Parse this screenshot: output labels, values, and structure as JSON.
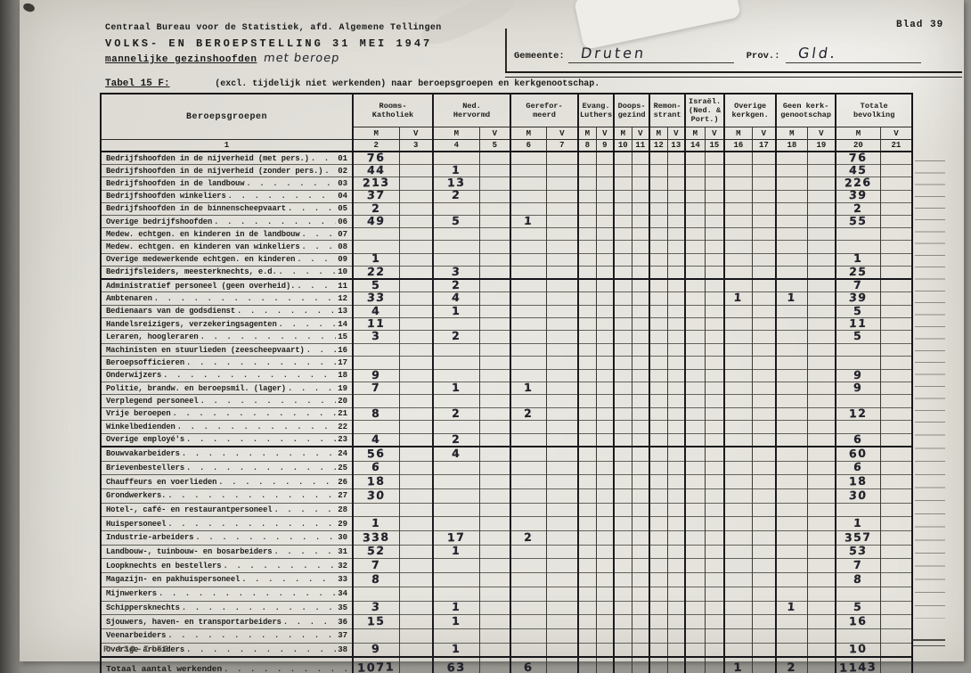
{
  "page": {
    "blad": "Blad 39",
    "footer_code": "R.130-I-50"
  },
  "header": {
    "bureau_line": "Centraal Bureau voor de Statistiek, afd. Algemene Tellingen",
    "title": "VOLKS- EN BEROEPSTELLING 31 MEI 1947",
    "subtitle_typed": "mannelijke gezinshoofden",
    "subtitle_handwritten": "met beroep",
    "gemeente_label": "Gemeente:",
    "gemeente_value": "Druten",
    "prov_label": "Prov.:",
    "prov_value": "Gld."
  },
  "tabel": {
    "label": "Tabel 15 F:",
    "description": "(excl. tijdelijk niet werkenden) naar beroepsgroepen en kerkgenootschap."
  },
  "table": {
    "beroepsgroepen_header": "Beroepsgroepen",
    "beroepsgroepen_colnum": "1",
    "mv": [
      "M",
      "V"
    ],
    "groups": [
      {
        "name": "Rooms-\nKatholiek",
        "cols": [
          "2",
          "3"
        ]
      },
      {
        "name": "Ned.\nHervormd",
        "cols": [
          "4",
          "5"
        ]
      },
      {
        "name": "Gerefor-\nmeerd",
        "cols": [
          "6",
          "7"
        ]
      },
      {
        "name": "Evang.\nLuthers",
        "cols": [
          "8",
          "9"
        ]
      },
      {
        "name": "Doops-\ngezind",
        "cols": [
          "10",
          "11"
        ]
      },
      {
        "name": "Remon-\nstrant",
        "cols": [
          "12",
          "13"
        ]
      },
      {
        "name": "Israël.\n(Ned. &\nPort.)",
        "cols": [
          "14",
          "15"
        ]
      },
      {
        "name": "Overige\nkerkgen.",
        "cols": [
          "16",
          "17"
        ]
      },
      {
        "name": "Geen kerk-\ngenootschap",
        "cols": [
          "18",
          "19"
        ]
      },
      {
        "name": "Totale\nbevolking",
        "cols": [
          "20",
          "21"
        ]
      }
    ],
    "sections": [
      {
        "rows": [
          {
            "num": "01",
            "label": "Bedrijfshoofden in de nijverheid (met pers.)",
            "v": {
              "2": "76",
              "20": "76"
            }
          },
          {
            "num": "02",
            "label": "Bedrijfshoofden in de nijverheid (zonder pers.)",
            "v": {
              "2": "44",
              "4": "1",
              "20": "45"
            }
          },
          {
            "num": "03",
            "label": "Bedrijfshoofden in de landbouw",
            "v": {
              "2": "213",
              "4": "13",
              "20": "226"
            }
          },
          {
            "num": "04",
            "label": "Bedrijfshoofden winkeliers",
            "v": {
              "2": "37",
              "4": "2",
              "20": "39"
            }
          },
          {
            "num": "05",
            "label": "Bedrijfshoofden in de binnenscheepvaart",
            "v": {
              "2": "2",
              "20": "2"
            }
          },
          {
            "num": "06",
            "label": "Overige bedrijfshoofden",
            "v": {
              "2": "49",
              "4": "5",
              "6": "1",
              "20": "55"
            }
          },
          {
            "num": "07",
            "label": "Medew. echtgen. en kinderen in de landbouw",
            "v": {}
          },
          {
            "num": "08",
            "label": "Medew. echtgen. en kinderen van winkeliers",
            "v": {}
          },
          {
            "num": "09",
            "label": "Overige medewerkende echtgen. en kinderen",
            "v": {
              "2": "1",
              "20": "1"
            }
          },
          {
            "num": "10",
            "label": "Bedrijfsleiders, meesterknechts, e.d.",
            "v": {
              "2": "22",
              "4": "3",
              "20": "25"
            }
          }
        ]
      },
      {
        "rows": [
          {
            "num": "11",
            "label": "Administratief personeel (geen overheid).",
            "v": {
              "2": "5",
              "4": "2",
              "20": "7"
            }
          },
          {
            "num": "12",
            "label": "Ambtenaren",
            "v": {
              "2": "33",
              "4": "4",
              "16": "1",
              "18": "1",
              "20": "39"
            }
          },
          {
            "num": "13",
            "label": "Bedienaars van de godsdienst",
            "v": {
              "2": "4",
              "4": "1",
              "20": "5"
            }
          },
          {
            "num": "14",
            "label": "Handelsreizigers, verzekeringsagenten",
            "v": {
              "2": "11",
              "20": "11"
            }
          },
          {
            "num": "15",
            "label": "Leraren, hoogleraren",
            "v": {
              "2": "3",
              "4": "2",
              "20": "5"
            }
          },
          {
            "num": "16",
            "label": "Machinisten en stuurlieden (zeescheepvaart)",
            "v": {}
          },
          {
            "num": "17",
            "label": "Beroepsofficieren",
            "v": {}
          },
          {
            "num": "18",
            "label": "Onderwijzers",
            "v": {
              "2": "9",
              "20": "9"
            }
          },
          {
            "num": "19",
            "label": "Politie, brandw. en beroepsmil. (lager)",
            "v": {
              "2": "7",
              "4": "1",
              "6": "1",
              "20": "9"
            }
          },
          {
            "num": "20",
            "label": "Verplegend personeel",
            "v": {}
          },
          {
            "num": "21",
            "label": "Vrije beroepen",
            "v": {
              "2": "8",
              "4": "2",
              "6": "2",
              "20": "12"
            }
          },
          {
            "num": "22",
            "label": "Winkelbedienden",
            "v": {}
          },
          {
            "num": "23",
            "label": "Overige employé's",
            "v": {
              "2": "4",
              "4": "2",
              "20": "6"
            }
          }
        ]
      },
      {
        "rows": [
          {
            "num": "24",
            "label": "Bouwvakarbeiders",
            "v": {
              "2": "56",
              "4": "4",
              "20": "60"
            }
          },
          {
            "num": "25",
            "label": "Brievenbestellers",
            "v": {
              "2": "6",
              "20": "6"
            }
          },
          {
            "num": "26",
            "label": "Chauffeurs en voerlieden",
            "v": {
              "2": "18",
              "20": "18"
            }
          },
          {
            "num": "27",
            "label": "Grondwerkers.",
            "v": {
              "2": "30",
              "20": "30"
            }
          },
          {
            "num": "28",
            "label": "Hotel-, café- en restaurantpersoneel",
            "v": {}
          },
          {
            "num": "29",
            "label": "Huispersoneel",
            "v": {
              "2": "1",
              "20": "1"
            }
          },
          {
            "num": "30",
            "label": "Industrie-arbeiders",
            "v": {
              "2": "338",
              "4": "17",
              "6": "2",
              "20": "357"
            }
          },
          {
            "num": "31",
            "label": "Landbouw-, tuinbouw- en bosarbeiders",
            "v": {
              "2": "52",
              "4": "1",
              "20": "53"
            }
          },
          {
            "num": "32",
            "label": "Loopknechts en bestellers",
            "v": {
              "2": "7",
              "20": "7"
            }
          },
          {
            "num": "33",
            "label": "Magazijn- en pakhuispersoneel",
            "v": {
              "2": "8",
              "20": "8"
            }
          },
          {
            "num": "34",
            "label": "Mijnwerkers",
            "v": {}
          },
          {
            "num": "35",
            "label": "Schippersknechts",
            "v": {
              "2": "3",
              "4": "1",
              "18": "1",
              "20": "5"
            }
          },
          {
            "num": "36",
            "label": "Sjouwers, haven- en transportarbeiders",
            "v": {
              "2": "15",
              "4": "1",
              "20": "16"
            }
          },
          {
            "num": "37",
            "label": "Veenarbeiders",
            "v": {}
          },
          {
            "num": "38",
            "label": "Overige arbeiders",
            "v": {
              "2": "9",
              "4": "1",
              "20": "10"
            }
          }
        ]
      }
    ],
    "total": {
      "label": "Totaal aantal werkenden",
      "v": {
        "2": "1071",
        "4": "63",
        "6": "6",
        "16": "1",
        "18": "2",
        "20": "1143"
      }
    }
  }
}
